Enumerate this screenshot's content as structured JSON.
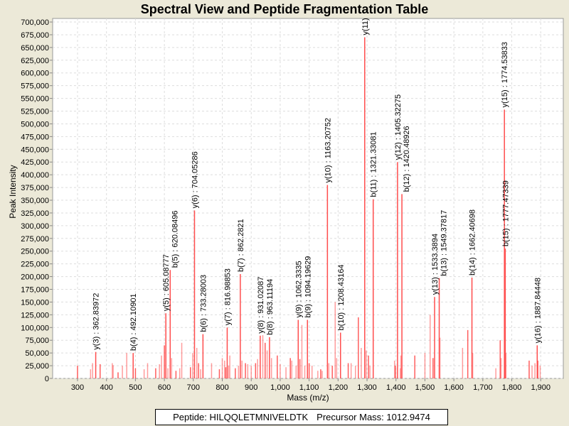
{
  "chart_data": {
    "type": "bar",
    "title": "Spectral View and Peptide Fragmentation Table",
    "xlabel": "Mass (m/z)",
    "ylabel": "Peak Intensity",
    "xlim": [
      214,
      1978
    ],
    "ylim": [
      0,
      707000
    ],
    "xticks": [
      300,
      400,
      500,
      600,
      700,
      800,
      900,
      1000,
      1100,
      1200,
      1300,
      1400,
      1500,
      1600,
      1700,
      1800,
      1900
    ],
    "yticks": [
      0,
      25000,
      50000,
      75000,
      100000,
      125000,
      150000,
      175000,
      200000,
      225000,
      250000,
      275000,
      300000,
      325000,
      350000,
      375000,
      400000,
      425000,
      450000,
      475000,
      500000,
      525000,
      550000,
      575000,
      600000,
      625000,
      650000,
      675000,
      700000
    ],
    "grid": true,
    "peak_color": "#ff4d4d",
    "annotated_peaks": [
      {
        "label": "y(3) : 362.83972",
        "mz": 362.84,
        "intensity": 52000
      },
      {
        "label": "b(4) : 492.10901",
        "mz": 492.11,
        "intensity": 50000
      },
      {
        "label": "y(5) : 605.08777",
        "mz": 605.09,
        "intensity": 128000
      },
      {
        "label": "b(5) : 620.08496",
        "mz": 620.08,
        "intensity": 213000
      },
      {
        "label": "y(6) : 704.05286",
        "mz": 704.05,
        "intensity": 330000
      },
      {
        "label": "b(6) : 733.28003",
        "mz": 733.28,
        "intensity": 87000
      },
      {
        "label": "y(7) : 816.98853",
        "mz": 816.99,
        "intensity": 100000
      },
      {
        "label": "b(7) : 862.2821",
        "mz": 862.28,
        "intensity": 205000
      },
      {
        "label": "y(8) : 931.02087",
        "mz": 931.02,
        "intensity": 84000
      },
      {
        "label": "b(8) : 963.11194",
        "mz": 963.11,
        "intensity": 81000
      },
      {
        "label": "y(9) : 1062.3335",
        "mz": 1062.33,
        "intensity": 115000
      },
      {
        "label": "b(9) : 1094.19629",
        "mz": 1094.2,
        "intensity": 115000
      },
      {
        "label": "y(10) : 1163.20752",
        "mz": 1163.21,
        "intensity": 380000
      },
      {
        "label": "b(10) : 1208.43164",
        "mz": 1208.43,
        "intensity": 90000
      },
      {
        "label": "y(11)",
        "mz": 1292,
        "intensity": 670000
      },
      {
        "label": "b(11) : 1321.33081",
        "mz": 1321.33,
        "intensity": 352000
      },
      {
        "label": "y(12) : 1405.32275",
        "mz": 1405.32,
        "intensity": 425000
      },
      {
        "label": "b(12) : 1420.48926",
        "mz": 1420.49,
        "intensity": 362000
      },
      {
        "label": "y(13) : 1533.3894",
        "mz": 1533.39,
        "intensity": 160000
      },
      {
        "label": "b(13) : 1549.37817",
        "mz": 1549.38,
        "intensity": 197000
      },
      {
        "label": "b(14) : 1662.40698",
        "mz": 1662.41,
        "intensity": 198000
      },
      {
        "label": "y(15) : 1774.53833",
        "mz": 1774.54,
        "intensity": 528000
      },
      {
        "label": "b(15) : 1777.47339",
        "mz": 1777.47,
        "intensity": 255000
      },
      {
        "label": "y(16) : 1887.84448",
        "mz": 1887.84,
        "intensity": 65000
      }
    ],
    "other_peaks": [
      [
        300,
        25000
      ],
      [
        345,
        18000
      ],
      [
        352,
        30000
      ],
      [
        378,
        28000
      ],
      [
        420,
        30000
      ],
      [
        423,
        26000
      ],
      [
        440,
        12000
      ],
      [
        455,
        25000
      ],
      [
        470,
        50000
      ],
      [
        500,
        20000
      ],
      [
        530,
        18000
      ],
      [
        542,
        30000
      ],
      [
        570,
        20000
      ],
      [
        583,
        28000
      ],
      [
        590,
        45000
      ],
      [
        600,
        65000
      ],
      [
        612,
        20000
      ],
      [
        625,
        40000
      ],
      [
        640,
        15000
      ],
      [
        653,
        20000
      ],
      [
        660,
        70000
      ],
      [
        690,
        22000
      ],
      [
        698,
        50000
      ],
      [
        712,
        60000
      ],
      [
        718,
        30000
      ],
      [
        725,
        18000
      ],
      [
        763,
        30000
      ],
      [
        790,
        18000
      ],
      [
        800,
        40000
      ],
      [
        808,
        35000
      ],
      [
        812,
        22000
      ],
      [
        822,
        25000
      ],
      [
        826,
        45000
      ],
      [
        845,
        20000
      ],
      [
        856,
        25000
      ],
      [
        868,
        35000
      ],
      [
        880,
        30000
      ],
      [
        888,
        28000
      ],
      [
        900,
        25000
      ],
      [
        915,
        30000
      ],
      [
        922,
        38000
      ],
      [
        940,
        85000
      ],
      [
        948,
        70000
      ],
      [
        955,
        55000
      ],
      [
        970,
        40000
      ],
      [
        990,
        45000
      ],
      [
        1000,
        28000
      ],
      [
        1020,
        22000
      ],
      [
        1035,
        40000
      ],
      [
        1040,
        35000
      ],
      [
        1055,
        25000
      ],
      [
        1068,
        38000
      ],
      [
        1075,
        105000
      ],
      [
        1085,
        25000
      ],
      [
        1100,
        30000
      ],
      [
        1110,
        25000
      ],
      [
        1130,
        15000
      ],
      [
        1140,
        18000
      ],
      [
        1145,
        15000
      ],
      [
        1168,
        30000
      ],
      [
        1180,
        25000
      ],
      [
        1190,
        150000
      ],
      [
        1195,
        40000
      ],
      [
        1235,
        30000
      ],
      [
        1245,
        30000
      ],
      [
        1260,
        25000
      ],
      [
        1270,
        120000
      ],
      [
        1280,
        60000
      ],
      [
        1297,
        55000
      ],
      [
        1305,
        45000
      ],
      [
        1310,
        25000
      ],
      [
        1395,
        35000
      ],
      [
        1398,
        25000
      ],
      [
        1415,
        20000
      ],
      [
        1417,
        45000
      ],
      [
        1465,
        45000
      ],
      [
        1500,
        50000
      ],
      [
        1518,
        125000
      ],
      [
        1528,
        40000
      ],
      [
        1552,
        80000
      ],
      [
        1630,
        60000
      ],
      [
        1648,
        95000
      ],
      [
        1665,
        50000
      ],
      [
        1745,
        20000
      ],
      [
        1760,
        75000
      ],
      [
        1763,
        40000
      ],
      [
        1780,
        50000
      ],
      [
        1860,
        35000
      ],
      [
        1870,
        25000
      ],
      [
        1880,
        30000
      ],
      [
        1890,
        35000
      ],
      [
        1898,
        25000
      ]
    ]
  },
  "info": {
    "peptide_label": "Peptide: HILQQLETMNIVELDTK",
    "precursor_label": "Precursor Mass: 1012.9474"
  }
}
